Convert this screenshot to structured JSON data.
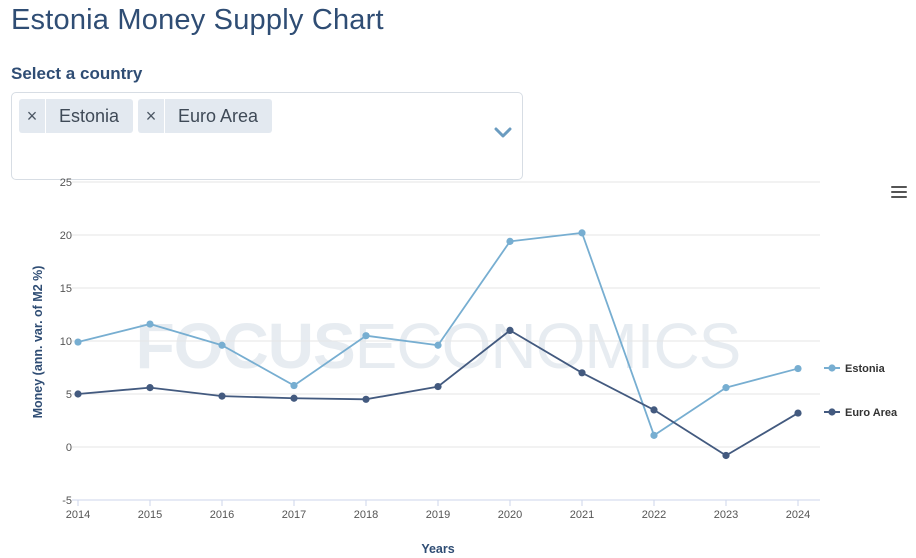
{
  "header": {
    "title": "Estonia Money Supply Chart"
  },
  "selector": {
    "label": "Select a country",
    "tags": [
      {
        "label": "Estonia",
        "remove": "×"
      },
      {
        "label": "Euro Area",
        "remove": "×"
      }
    ]
  },
  "chart_data": {
    "type": "line",
    "xlabel": "Years",
    "ylabel": "Money (ann. var. of M2 %)",
    "ylim": [
      -5,
      25
    ],
    "yticks": [
      -5,
      0,
      5,
      10,
      15,
      20,
      25
    ],
    "x": [
      "2014",
      "2015",
      "2016",
      "2017",
      "2018",
      "2019",
      "2020",
      "2021",
      "2022",
      "2023",
      "2024"
    ],
    "series": [
      {
        "name": "Estonia",
        "color": "#77aed1",
        "values": [
          9.9,
          11.6,
          9.6,
          5.8,
          10.5,
          9.6,
          19.4,
          20.2,
          1.1,
          5.6,
          7.4
        ]
      },
      {
        "name": "Euro Area",
        "color": "#435a7f",
        "values": [
          5.0,
          5.6,
          4.8,
          4.6,
          4.5,
          5.7,
          11.0,
          7.0,
          3.5,
          -0.8,
          3.2
        ]
      }
    ],
    "legend_position": "right",
    "grid": true,
    "watermark": "FOCUSECONOMICS"
  }
}
